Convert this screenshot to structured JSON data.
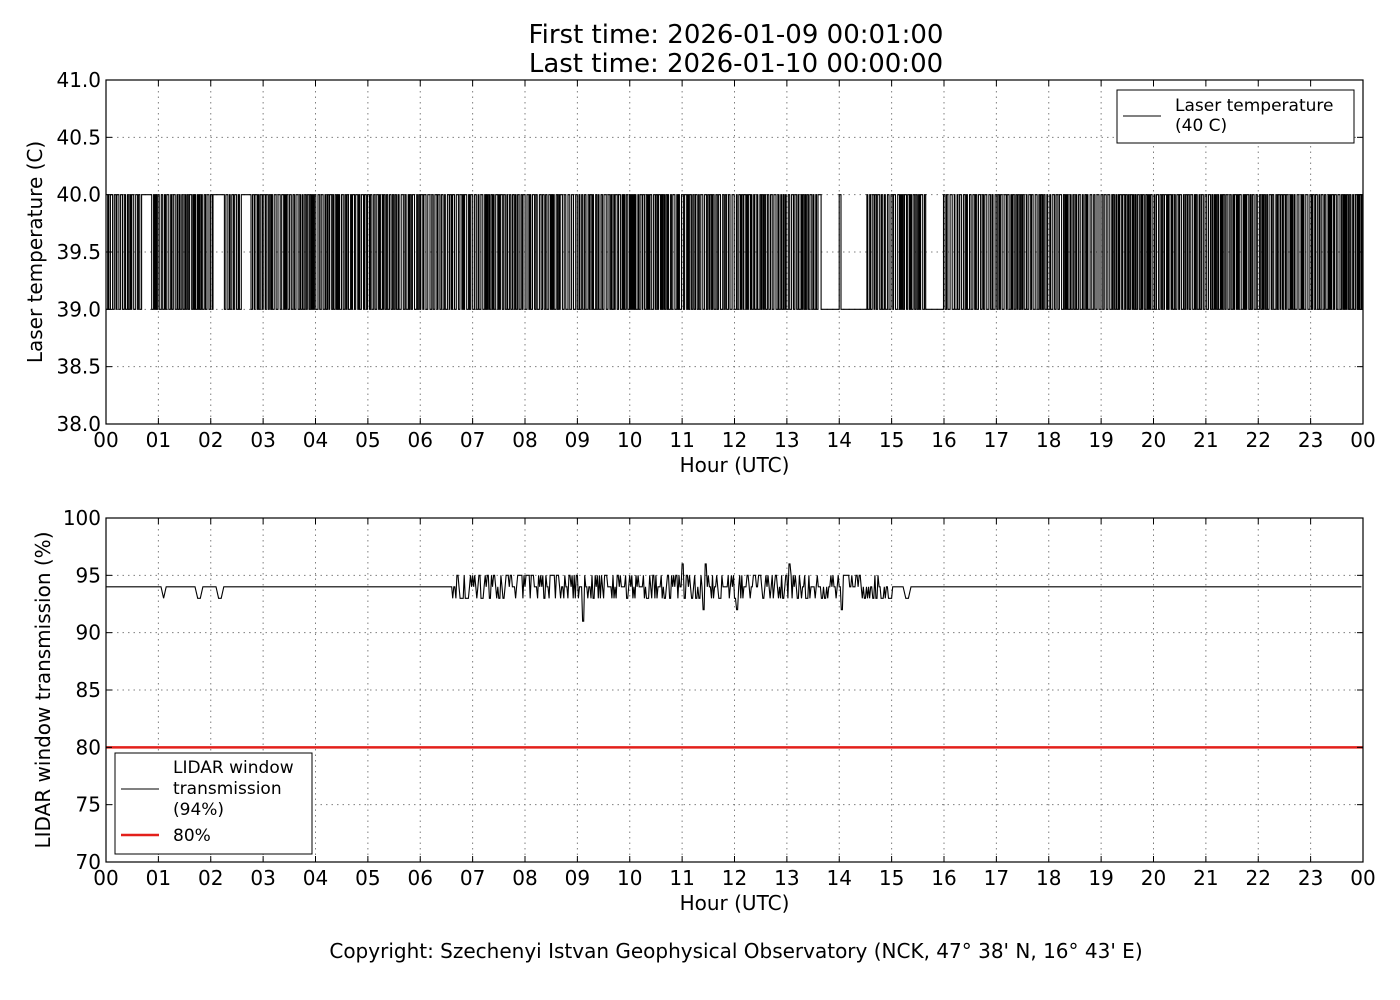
{
  "figure": {
    "title_line1": "First time: 2026-01-09 00:01:00",
    "title_line2": "Last time: 2026-01-10 00:00:00",
    "copyright": "Copyright: Szechenyi Istvan Geophysical Observatory (NCK, 47° 38' N, 16° 43' E)"
  },
  "chart_data": [
    {
      "type": "line",
      "xlabel": "Hour (UTC)",
      "ylabel": "Laser temperature (C)",
      "x_ticks": [
        "00",
        "01",
        "02",
        "03",
        "04",
        "05",
        "06",
        "07",
        "08",
        "09",
        "10",
        "11",
        "12",
        "13",
        "14",
        "15",
        "16",
        "17",
        "18",
        "19",
        "20",
        "21",
        "22",
        "23",
        "00"
      ],
      "xlim": [
        0,
        24
      ],
      "ylim": [
        38.0,
        41.0
      ],
      "y_ticks": [
        "38.0",
        "38.5",
        "39.0",
        "39.5",
        "40.0",
        "40.5",
        "41.0"
      ],
      "grid": true,
      "legend_position": "top-right",
      "series": [
        {
          "name": "Laser temperature\n(40 C)",
          "color": "#000000",
          "behavior": "rapid switching between 39.0 and 40.0 throughout the day",
          "levels": [
            39.0,
            40.0
          ],
          "low_intervals": [
            [
              13.65,
              13.98
            ],
            [
              14.03,
              14.5
            ],
            [
              15.65,
              15.98
            ]
          ],
          "high_intervals": [
            [
              0.7,
              0.85
            ],
            [
              2.05,
              2.25
            ],
            [
              2.55,
              2.75
            ],
            [
              13.58,
              13.64
            ],
            [
              13.99,
              14.02
            ]
          ],
          "x": [
            0,
            24
          ]
        }
      ]
    },
    {
      "type": "line",
      "xlabel": "Hour (UTC)",
      "ylabel": "LIDAR window transmission (%)",
      "x_ticks": [
        "00",
        "01",
        "02",
        "03",
        "04",
        "05",
        "06",
        "07",
        "08",
        "09",
        "10",
        "11",
        "12",
        "13",
        "14",
        "15",
        "16",
        "17",
        "18",
        "19",
        "20",
        "21",
        "22",
        "23",
        "00"
      ],
      "xlim": [
        0,
        24
      ],
      "ylim": [
        70,
        100
      ],
      "y_ticks": [
        "70",
        "75",
        "80",
        "85",
        "90",
        "95",
        "100"
      ],
      "grid": true,
      "legend_position": "lower-left",
      "series": [
        {
          "name": "LIDAR window\ntransmission\n(94%)",
          "color": "#000000",
          "baseline": 94,
          "dips_to_93": [
            [
              1.08,
              1.12
            ],
            [
              1.72,
              1.85
            ],
            [
              2.12,
              2.22
            ],
            [
              15.25,
              15.35
            ]
          ],
          "noisy_interval": [
            6.55,
            15.0
          ],
          "noisy_range": [
            93,
            95
          ],
          "spikes": [
            [
              9.1,
              91
            ],
            [
              11.0,
              96
            ],
            [
              11.45,
              96
            ],
            [
              11.4,
              92
            ],
            [
              12.05,
              92
            ],
            [
              13.05,
              96
            ],
            [
              14.05,
              92
            ]
          ]
        },
        {
          "name": "80%",
          "color": "#e3201b",
          "value": 80
        }
      ]
    }
  ]
}
